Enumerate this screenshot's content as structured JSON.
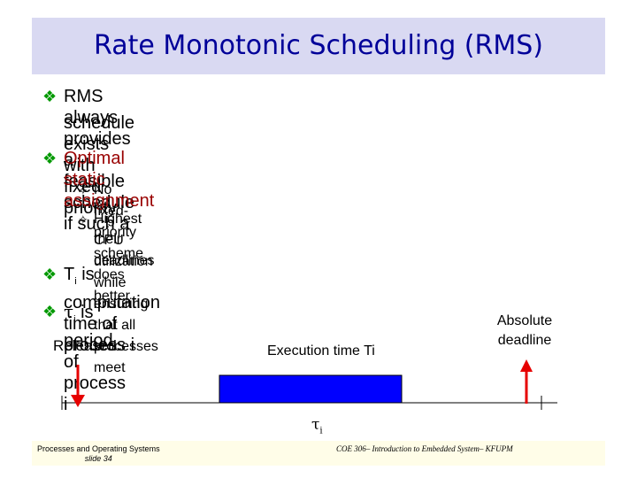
{
  "slide": {
    "title": "Rate Monotonic Scheduling (RMS)",
    "bullets": [
      {
        "icon": "diamond-bullet-icon",
        "line1": "RMS always provides a feasible schedule if such a",
        "line2": "schedule exists with fixed priority"
      },
      {
        "icon": "diamond-bullet-icon",
        "line1": "Optimal static assignment"
      }
    ],
    "subbullets": [
      {
        "icon": "star-bullet-icon",
        "line1": "No fixed-priority scheme does better"
      },
      {
        "icon": "star-bullet-icon",
        "line1": "Highest CPU utilization while ensuring that all processes meet",
        "line2": "their deadlines"
      }
    ],
    "bullet_ti": {
      "pre": "T",
      "sub": "i",
      "post": " is computation time of process i"
    },
    "bullet_tau": {
      "pre": "τ",
      "sub": "i",
      "post": " is period of process i"
    }
  },
  "diagram": {
    "released_label": "Released",
    "execution_label": "Execution time Ti",
    "deadline_line1": "Absolute",
    "deadline_line2": "deadline",
    "period_symbol": "τ",
    "period_sub": "i",
    "colors": {
      "release_arrow": "#e60000",
      "execution_bar": "#0000ff",
      "axis": "#000000"
    }
  },
  "footer": {
    "left_line1": "Processes and Operating Systems",
    "left_line2": "slide 34",
    "right": "COE 306– Introduction to Embedded System– KFUPM"
  }
}
